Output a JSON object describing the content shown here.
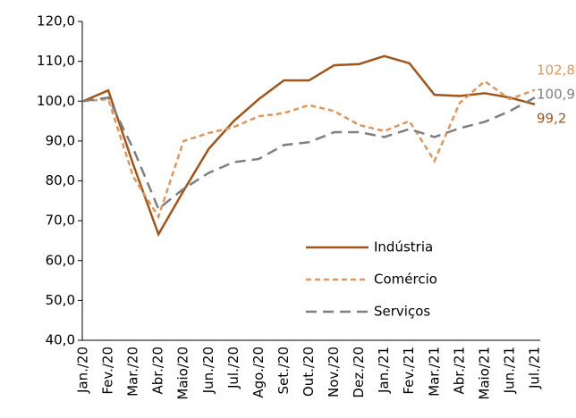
{
  "chart_data": {
    "type": "line",
    "categories": [
      "Jan./20",
      "Fev./20",
      "Mar./20",
      "Abr./20",
      "Maio/20",
      "Jun./20",
      "Jul./20",
      "Ago./20",
      "Set./20",
      "Out./20",
      "Nov./20",
      "Dez./20",
      "Jan./21",
      "Fev./21",
      "Mar./21",
      "Abr./21",
      "Maio/21",
      "Jun./21",
      "Jul./21"
    ],
    "series": [
      {
        "name": "Indústria",
        "color": "#a0561a",
        "dash": "solid",
        "end_label": "99,2",
        "values": [
          100,
          102.7,
          84,
          66.6,
          77.5,
          88,
          95,
          100.5,
          105.2,
          105.2,
          109,
          109.3,
          111.3,
          109.5,
          101.6,
          101.3,
          102,
          100.9,
          99.2
        ]
      },
      {
        "name": "Comércio",
        "color": "#e0965a",
        "dash": "short",
        "end_label": "102,8",
        "values": [
          100,
          100.5,
          81,
          71,
          90,
          92,
          93.5,
          96.2,
          97,
          99,
          97.5,
          94,
          92.5,
          95,
          85,
          99.5,
          105,
          100.5,
          102.8
        ]
      },
      {
        "name": "Serviços",
        "color": "#7f7f7f",
        "dash": "long",
        "end_label": "100,9",
        "values": [
          100,
          100.9,
          88,
          73,
          78,
          82,
          84.7,
          85.5,
          89,
          89.7,
          92.2,
          92.2,
          91,
          93,
          91,
          93.2,
          94.8,
          97.5,
          100.9
        ]
      }
    ],
    "ylim": [
      40,
      120
    ],
    "yticks": [
      {
        "value": 40,
        "label": "40,0"
      },
      {
        "value": 50,
        "label": "50,0"
      },
      {
        "value": 60,
        "label": "60,0"
      },
      {
        "value": 70,
        "label": "70,0"
      },
      {
        "value": 80,
        "label": "80,0"
      },
      {
        "value": 90,
        "label": "90,0"
      },
      {
        "value": 100,
        "label": "100,0"
      },
      {
        "value": 110,
        "label": "110,0"
      },
      {
        "value": 120,
        "label": "120,0"
      }
    ],
    "grid": false,
    "legend": "lower-right"
  }
}
